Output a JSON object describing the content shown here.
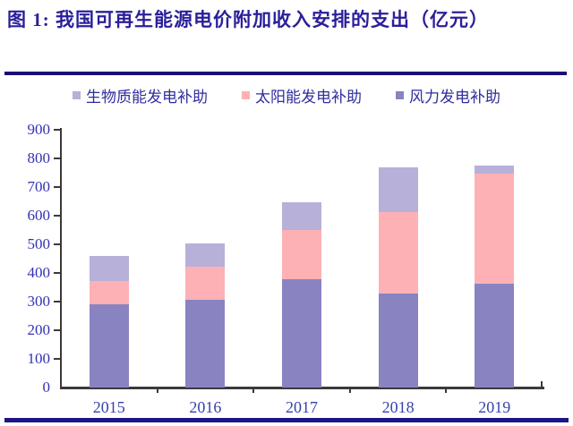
{
  "title": "图 1:  我国可再生能源电价附加收入安排的支出（亿元）",
  "legend": [
    {
      "label": "生物质能发电补助",
      "color": "#b7b0d9"
    },
    {
      "label": "太阳能发电补助",
      "color": "#feb1b5"
    },
    {
      "label": "风力发电补助",
      "color": "#8983c1"
    }
  ],
  "chart_data": {
    "type": "bar",
    "stacked": true,
    "categories": [
      "2015",
      "2016",
      "2017",
      "2018",
      "2019"
    ],
    "series": [
      {
        "name": "风力发电补助",
        "color": "#8983c1",
        "values": [
          290,
          307,
          379,
          327,
          364
        ]
      },
      {
        "name": "太阳能发电补助",
        "color": "#feb1b5",
        "values": [
          82,
          116,
          171,
          286,
          383
        ]
      },
      {
        "name": "生物质能发电补助",
        "color": "#b7b0d9",
        "values": [
          88,
          81,
          96,
          157,
          29
        ]
      }
    ],
    "totals": [
      460,
      504,
      646,
      770,
      776
    ],
    "title": "我国可再生能源电价附加收入安排的支出（亿元）",
    "xlabel": "",
    "ylabel": "",
    "ylim": [
      0,
      900
    ],
    "yticks": [
      0,
      100,
      200,
      300,
      400,
      500,
      600,
      700,
      800,
      900
    ],
    "grid": false,
    "legend_position": "top"
  },
  "colors": {
    "title_text": "#2a1f99",
    "rule_navy": "#190f78",
    "axis_line": "#3a3a3a",
    "tick_label_text": "#3232b4",
    "legend_text": "#2e2e9e",
    "background": "#ffffff"
  }
}
